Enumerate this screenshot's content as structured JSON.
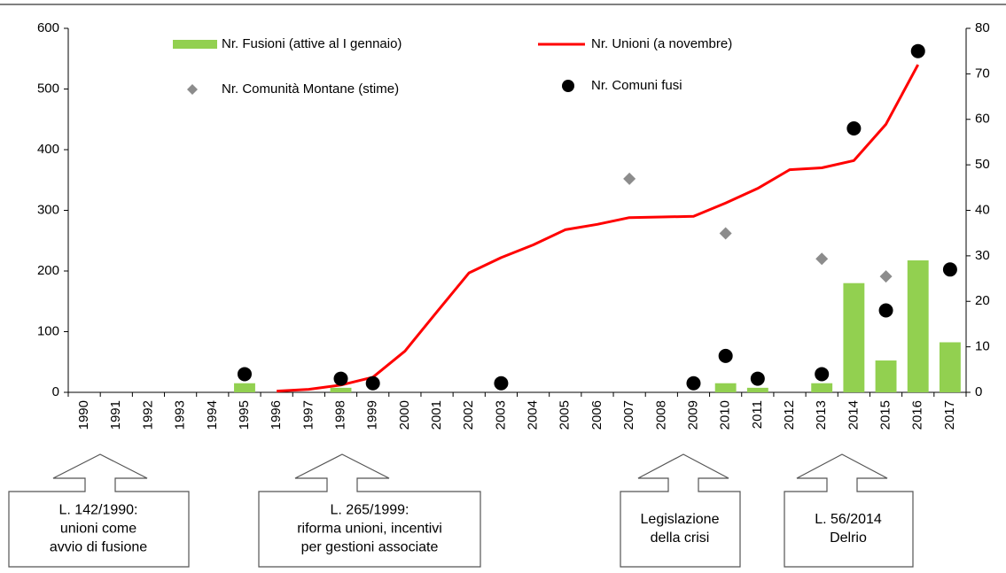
{
  "chart_data": {
    "type": "bar",
    "categories": [
      "1990",
      "1991",
      "1992",
      "1993",
      "1994",
      "1995",
      "1996",
      "1997",
      "1998",
      "1999",
      "2000",
      "2001",
      "2002",
      "2003",
      "2004",
      "2005",
      "2006",
      "2007",
      "2008",
      "2009",
      "2010",
      "2011",
      "2012",
      "2013",
      "2014",
      "2015",
      "2016",
      "2017"
    ],
    "ylim": [
      0,
      600
    ],
    "yticks": [
      0,
      100,
      200,
      300,
      400,
      500,
      600
    ],
    "y2lim": [
      0,
      80
    ],
    "y2ticks": [
      0,
      10,
      20,
      30,
      40,
      50,
      60,
      70,
      80
    ],
    "series": [
      {
        "name": "Nr. Fusioni (attive al I gennaio)",
        "type": "bar",
        "axis": "y2",
        "color": "#92d050",
        "values": [
          null,
          null,
          null,
          null,
          null,
          2,
          null,
          null,
          1,
          null,
          null,
          null,
          null,
          null,
          null,
          null,
          null,
          null,
          null,
          null,
          2,
          1,
          null,
          2,
          24,
          7,
          29,
          11
        ]
      },
      {
        "name": "Nr. Unioni (a novembre)",
        "type": "line",
        "color": "#ff0000",
        "values": [
          null,
          null,
          null,
          null,
          null,
          null,
          2,
          5,
          12,
          25,
          68,
          133,
          197,
          222,
          243,
          268,
          277,
          288,
          289,
          290,
          312,
          336,
          367,
          370,
          382,
          442,
          540,
          null
        ]
      },
      {
        "name": "Nr. Comunità Montane (stime)",
        "type": "scatter",
        "marker": "diamond",
        "color": "#8c8c8c",
        "values": [
          null,
          null,
          null,
          null,
          null,
          null,
          null,
          null,
          null,
          null,
          null,
          null,
          null,
          null,
          null,
          null,
          null,
          352,
          null,
          null,
          262,
          null,
          null,
          220,
          null,
          191,
          null,
          null
        ]
      },
      {
        "name": "Nr. Comuni fusi",
        "type": "scatter",
        "marker": "circle",
        "axis": "y2",
        "color": "#000000",
        "values": [
          null,
          null,
          null,
          null,
          null,
          4,
          null,
          null,
          3,
          2,
          null,
          null,
          null,
          2,
          null,
          null,
          null,
          null,
          null,
          2,
          8,
          3,
          null,
          4,
          58,
          18,
          75,
          27
        ]
      }
    ],
    "annotations": [
      {
        "lines": [
          "L. 142/1990:",
          "unioni come",
          "avvio di fusione"
        ]
      },
      {
        "lines": [
          "L. 265/1999:",
          "riforma unioni, incentivi",
          "per gestioni associate"
        ]
      },
      {
        "lines": [
          "Legislazione",
          "della crisi"
        ]
      },
      {
        "lines": [
          "L. 56/2014",
          "Delrio"
        ]
      }
    ]
  }
}
